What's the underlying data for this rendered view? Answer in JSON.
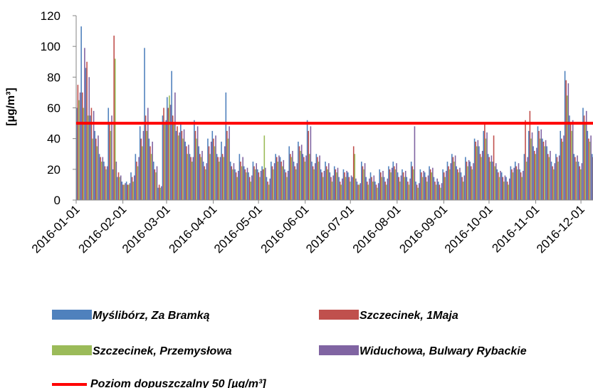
{
  "chart_data": {
    "type": "bar",
    "y_label": "[µg/m³]",
    "x": [
      "2016-01-01",
      "2016-01-04",
      "2016-01-07",
      "2016-01-10",
      "2016-01-13",
      "2016-01-16",
      "2016-01-19",
      "2016-01-22",
      "2016-01-25",
      "2016-01-28",
      "2016-01-31",
      "2016-02-03",
      "2016-02-06",
      "2016-02-09",
      "2016-02-12",
      "2016-02-15",
      "2016-02-18",
      "2016-02-21",
      "2016-02-24",
      "2016-02-27",
      "2016-03-01",
      "2016-03-04",
      "2016-03-07",
      "2016-03-10",
      "2016-03-13",
      "2016-03-16",
      "2016-03-19",
      "2016-03-22",
      "2016-03-25",
      "2016-03-28",
      "2016-03-31",
      "2016-04-03",
      "2016-04-06",
      "2016-04-09",
      "2016-04-12",
      "2016-04-15",
      "2016-04-18",
      "2016-04-21",
      "2016-04-24",
      "2016-04-27",
      "2016-04-30",
      "2016-05-03",
      "2016-05-06",
      "2016-05-09",
      "2016-05-12",
      "2016-05-15",
      "2016-05-18",
      "2016-05-21",
      "2016-05-24",
      "2016-05-27",
      "2016-05-30",
      "2016-06-02",
      "2016-06-05",
      "2016-06-08",
      "2016-06-11",
      "2016-06-14",
      "2016-06-17",
      "2016-06-20",
      "2016-06-23",
      "2016-06-26",
      "2016-06-29",
      "2016-07-02",
      "2016-07-05",
      "2016-07-08",
      "2016-07-11",
      "2016-07-14",
      "2016-07-17",
      "2016-07-20",
      "2016-07-23",
      "2016-07-26",
      "2016-07-29",
      "2016-08-01",
      "2016-08-04",
      "2016-08-07",
      "2016-08-10",
      "2016-08-13",
      "2016-08-16",
      "2016-08-19",
      "2016-08-22",
      "2016-08-25",
      "2016-08-28",
      "2016-08-31",
      "2016-09-03",
      "2016-09-06",
      "2016-09-09",
      "2016-09-12",
      "2016-09-15",
      "2016-09-18",
      "2016-09-21",
      "2016-09-24",
      "2016-09-27",
      "2016-09-30",
      "2016-10-03",
      "2016-10-06",
      "2016-10-09",
      "2016-10-12",
      "2016-10-15",
      "2016-10-18",
      "2016-10-21",
      "2016-10-24",
      "2016-10-27",
      "2016-10-30",
      "2016-11-02",
      "2016-11-05",
      "2016-11-08",
      "2016-11-11",
      "2016-11-14",
      "2016-11-17",
      "2016-11-20",
      "2016-11-23",
      "2016-11-26",
      "2016-11-29",
      "2016-12-02",
      "2016-12-05",
      "2016-12-08"
    ],
    "series": [
      {
        "name": "Myślibórz, Za Bramką",
        "color": "#4f81bd",
        "values": [
          60,
          113,
          86,
          55,
          45,
          30,
          25,
          60,
          20,
          15,
          12,
          12,
          18,
          30,
          48,
          99,
          40,
          25,
          8,
          55,
          67,
          84,
          45,
          50,
          38,
          30,
          52,
          35,
          25,
          40,
          45,
          30,
          38,
          70,
          25,
          20,
          30,
          22,
          18,
          25,
          20,
          22,
          15,
          25,
          30,
          28,
          20,
          35,
          25,
          38,
          30,
          52,
          25,
          30,
          20,
          25,
          18,
          22,
          15,
          20,
          18,
          15,
          12,
          25,
          15,
          18,
          12,
          20,
          15,
          22,
          25,
          18,
          20,
          15,
          25,
          12,
          20,
          18,
          22,
          15,
          12,
          20,
          25,
          30,
          22,
          18,
          28,
          25,
          40,
          35,
          45,
          30,
          25,
          20,
          18,
          15,
          22,
          25,
          20,
          30,
          45,
          35,
          48,
          40,
          35,
          25,
          30,
          45,
          84,
          55,
          30,
          25,
          60,
          45,
          30
        ]
      },
      {
        "name": "Szczecinek, 1Maja",
        "color": "#c0504d",
        "values": [
          75,
          70,
          90,
          60,
          40,
          28,
          22,
          50,
          107,
          18,
          10,
          10,
          15,
          25,
          40,
          55,
          35,
          20,
          10,
          60,
          60,
          55,
          48,
          45,
          35,
          28,
          45,
          30,
          22,
          35,
          40,
          28,
          30,
          45,
          22,
          18,
          25,
          20,
          15,
          22,
          18,
          20,
          12,
          22,
          28,
          25,
          18,
          30,
          22,
          35,
          28,
          45,
          22,
          28,
          18,
          22,
          15,
          20,
          12,
          18,
          15,
          35,
          10,
          22,
          12,
          15,
          10,
          18,
          12,
          20,
          22,
          15,
          18,
          12,
          22,
          10,
          18,
          15,
          20,
          12,
          10,
          18,
          22,
          28,
          20,
          15,
          25,
          22,
          38,
          30,
          50,
          28,
          42,
          18,
          15,
          12,
          20,
          22,
          18,
          52,
          58,
          32,
          45,
          38,
          30,
          22,
          28,
          40,
          78,
          50,
          28,
          22,
          55,
          40,
          28
        ]
      },
      {
        "name": "Szczecinek, Przemysłowa",
        "color": "#9bbb59",
        "values": [
          65,
          60,
          55,
          40,
          35,
          25,
          20,
          45,
          92,
          15,
          10,
          10,
          12,
          22,
          35,
          45,
          30,
          18,
          8,
          50,
          68,
          50,
          42,
          40,
          30,
          25,
          40,
          28,
          20,
          30,
          35,
          25,
          28,
          40,
          20,
          15,
          22,
          18,
          12,
          20,
          15,
          42,
          10,
          20,
          25,
          22,
          15,
          28,
          20,
          32,
          25,
          30,
          20,
          25,
          15,
          20,
          12,
          18,
          10,
          15,
          12,
          30,
          10,
          20,
          10,
          12,
          8,
          15,
          10,
          18,
          20,
          12,
          15,
          10,
          20,
          8,
          15,
          12,
          18,
          10,
          8,
          15,
          20,
          25,
          18,
          12,
          22,
          20,
          35,
          28,
          40,
          25,
          22,
          15,
          12,
          10,
          18,
          20,
          15,
          25,
          40,
          30,
          40,
          35,
          28,
          20,
          25,
          38,
          68,
          45,
          25,
          20,
          50,
          38,
          35
        ]
      },
      {
        "name": "Widuchowa, Bulwary Rybackie",
        "color": "#8064a2",
        "values": [
          70,
          99,
          80,
          58,
          42,
          28,
          22,
          55,
          25,
          16,
          11,
          11,
          16,
          28,
          45,
          60,
          38,
          22,
          9,
          52,
          62,
          70,
          44,
          46,
          36,
          28,
          48,
          32,
          24,
          38,
          42,
          28,
          35,
          48,
          24,
          19,
          28,
          21,
          16,
          24,
          19,
          21,
          14,
          24,
          29,
          26,
          19,
          32,
          24,
          36,
          29,
          48,
          24,
          29,
          19,
          24,
          16,
          21,
          14,
          19,
          16,
          14,
          11,
          24,
          14,
          16,
          11,
          19,
          14,
          21,
          24,
          16,
          19,
          14,
          48,
          11,
          19,
          16,
          21,
          14,
          11,
          19,
          24,
          29,
          21,
          16,
          26,
          24,
          39,
          32,
          44,
          29,
          24,
          19,
          16,
          14,
          21,
          24,
          19,
          28,
          44,
          34,
          46,
          39,
          32,
          24,
          29,
          42,
          76,
          52,
          29,
          24,
          58,
          42,
          29
        ]
      }
    ],
    "reference_line": {
      "name": "Poziom dopuszczalny 50 [µg/m³]",
      "value": 50,
      "color": "#ff0000"
    },
    "xlim": [
      "2016-01-01",
      "2016-12-09"
    ],
    "xticks": [
      "2016-01-01",
      "2016-02-01",
      "2016-03-01",
      "2016-04-01",
      "2016-05-01",
      "2016-06-01",
      "2016-07-01",
      "2016-08-01",
      "2016-09-01",
      "2016-10-01",
      "2016-11-01",
      "2016-12-01"
    ],
    "ylim": [
      0,
      120
    ],
    "yticks": [
      0,
      20,
      40,
      60,
      80,
      100,
      120
    ],
    "grid": false,
    "legend": "bottom"
  }
}
